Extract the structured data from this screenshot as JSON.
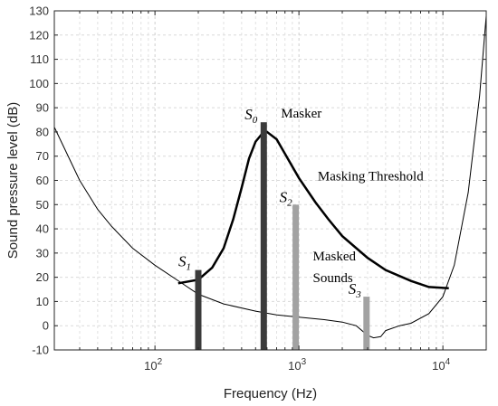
{
  "chart_data": {
    "type": "line",
    "title": "",
    "xlabel": "Frequency (Hz)",
    "ylabel": "Sound pressure level (dB)",
    "x_scale": "log",
    "xlim": [
      20,
      20000
    ],
    "ylim": [
      -10,
      130
    ],
    "y_ticks": [
      -10,
      0,
      10,
      20,
      30,
      40,
      50,
      60,
      70,
      80,
      90,
      100,
      110,
      120,
      130
    ],
    "x_ticks": [
      {
        "value": 100,
        "base": "10",
        "exp": "2"
      },
      {
        "value": 1000,
        "base": "10",
        "exp": "3"
      },
      {
        "value": 10000,
        "base": "10",
        "exp": "4"
      }
    ],
    "grid": true,
    "series": [
      {
        "name": "",
        "color": "#000000",
        "x": [
          20,
          30,
          40,
          50,
          70,
          100,
          150,
          200,
          300,
          500,
          700,
          1000,
          1500,
          2000,
          2500,
          3000,
          3300,
          3700,
          4000,
          5000,
          6000,
          8000,
          10000,
          12000,
          15000,
          18000,
          20000
        ],
        "y": [
          82,
          60,
          48,
          41,
          32,
          25,
          18,
          13,
          9,
          6,
          4.5,
          3.5,
          2.5,
          1.5,
          0,
          -4,
          -5,
          -4.5,
          -2,
          0,
          1,
          5,
          12,
          25,
          55,
          95,
          128
        ]
      },
      {
        "name": "Masking Threshold",
        "color": "#000000",
        "x": [
          145,
          200,
          250,
          300,
          350,
          400,
          450,
          500,
          550,
          600,
          700,
          800,
          1000,
          1300,
          1600,
          2000,
          3000,
          4000,
          6000,
          8000,
          11000
        ],
        "y": [
          17.5,
          19,
          24,
          32,
          44,
          57,
          69,
          76,
          79,
          80,
          77,
          71,
          61,
          51,
          44,
          37,
          28,
          23,
          18.5,
          16,
          15.5
        ]
      }
    ],
    "bars": [
      {
        "label": "S",
        "sub": "1",
        "x": 200,
        "value": 23,
        "color": "#3b3b3b"
      },
      {
        "label": "S",
        "sub": "0",
        "x": 570,
        "value": 84,
        "color": "#3b3b3b"
      },
      {
        "label": "S",
        "sub": "2",
        "x": 950,
        "value": 50,
        "color": "#a2a2a2"
      },
      {
        "label": "S",
        "sub": "3",
        "x": 2950,
        "value": 12,
        "color": "#a2a2a2"
      }
    ],
    "annotations": [
      {
        "text": "Masker",
        "x": 750,
        "y": 86
      },
      {
        "text": "Masking Threshold",
        "x": 1350,
        "y": 60
      },
      {
        "text": "Masked",
        "x": 1250,
        "y": 27
      },
      {
        "text": "Sounds",
        "x": 1250,
        "y": 18
      }
    ]
  }
}
